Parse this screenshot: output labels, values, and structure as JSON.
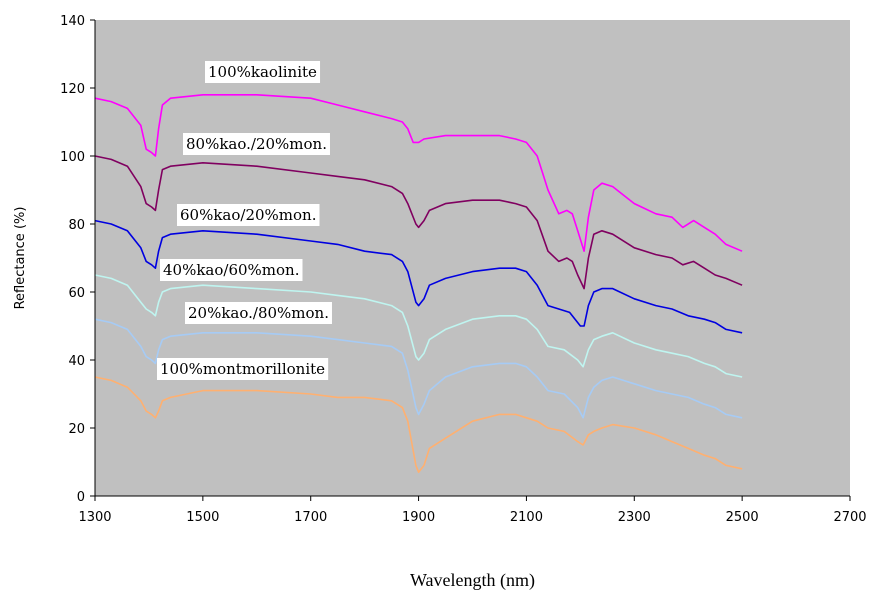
{
  "chart_data": {
    "type": "line",
    "title": "",
    "xlabel": "Wavelength (nm)",
    "ylabel": "Reflectance (%)",
    "xlim": [
      1300,
      2700
    ],
    "ylim": [
      0,
      140
    ],
    "xticks": [
      1300,
      1500,
      1700,
      1900,
      2100,
      2300,
      2500,
      2700
    ],
    "yticks": [
      0,
      20,
      40,
      60,
      80,
      100,
      120,
      140
    ],
    "grid": false,
    "plot_background": "#c0c0c0",
    "series": [
      {
        "name": "100%kaolinite",
        "color": "#ff00ff",
        "points": [
          [
            1300,
            117
          ],
          [
            1330,
            116
          ],
          [
            1360,
            114
          ],
          [
            1385,
            109
          ],
          [
            1395,
            102
          ],
          [
            1405,
            101
          ],
          [
            1412,
            100
          ],
          [
            1418,
            108
          ],
          [
            1425,
            115
          ],
          [
            1440,
            117
          ],
          [
            1500,
            118
          ],
          [
            1600,
            118
          ],
          [
            1700,
            117
          ],
          [
            1750,
            115
          ],
          [
            1800,
            113
          ],
          [
            1850,
            111
          ],
          [
            1870,
            110
          ],
          [
            1880,
            108
          ],
          [
            1890,
            104
          ],
          [
            1900,
            104
          ],
          [
            1910,
            105
          ],
          [
            1950,
            106
          ],
          [
            2000,
            106
          ],
          [
            2050,
            106
          ],
          [
            2080,
            105
          ],
          [
            2100,
            104
          ],
          [
            2120,
            100
          ],
          [
            2140,
            90
          ],
          [
            2160,
            83
          ],
          [
            2175,
            84
          ],
          [
            2185,
            83
          ],
          [
            2195,
            78
          ],
          [
            2207,
            72
          ],
          [
            2215,
            82
          ],
          [
            2225,
            90
          ],
          [
            2240,
            92
          ],
          [
            2260,
            91
          ],
          [
            2300,
            86
          ],
          [
            2340,
            83
          ],
          [
            2370,
            82
          ],
          [
            2390,
            79
          ],
          [
            2410,
            81
          ],
          [
            2430,
            79
          ],
          [
            2450,
            77
          ],
          [
            2470,
            74
          ],
          [
            2500,
            72
          ]
        ],
        "label": "100%kaolinite"
      },
      {
        "name": "80%kao./20%mon.",
        "color": "#800060",
        "points": [
          [
            1300,
            100
          ],
          [
            1330,
            99
          ],
          [
            1360,
            97
          ],
          [
            1385,
            91
          ],
          [
            1395,
            86
          ],
          [
            1405,
            85
          ],
          [
            1412,
            84
          ],
          [
            1418,
            90
          ],
          [
            1425,
            96
          ],
          [
            1440,
            97
          ],
          [
            1500,
            98
          ],
          [
            1600,
            97
          ],
          [
            1700,
            95
          ],
          [
            1750,
            94
          ],
          [
            1800,
            93
          ],
          [
            1850,
            91
          ],
          [
            1870,
            89
          ],
          [
            1880,
            86
          ],
          [
            1895,
            80
          ],
          [
            1900,
            79
          ],
          [
            1910,
            81
          ],
          [
            1920,
            84
          ],
          [
            1950,
            86
          ],
          [
            2000,
            87
          ],
          [
            2050,
            87
          ],
          [
            2080,
            86
          ],
          [
            2100,
            85
          ],
          [
            2120,
            81
          ],
          [
            2140,
            72
          ],
          [
            2160,
            69
          ],
          [
            2175,
            70
          ],
          [
            2185,
            69
          ],
          [
            2195,
            65
          ],
          [
            2207,
            61
          ],
          [
            2215,
            70
          ],
          [
            2225,
            77
          ],
          [
            2240,
            78
          ],
          [
            2260,
            77
          ],
          [
            2300,
            73
          ],
          [
            2340,
            71
          ],
          [
            2370,
            70
          ],
          [
            2390,
            68
          ],
          [
            2410,
            69
          ],
          [
            2430,
            67
          ],
          [
            2450,
            65
          ],
          [
            2470,
            64
          ],
          [
            2500,
            62
          ]
        ],
        "label": "80%kao./20%mon."
      },
      {
        "name": "60%kao/20%mon.",
        "color": "#0000e0",
        "points": [
          [
            1300,
            81
          ],
          [
            1330,
            80
          ],
          [
            1360,
            78
          ],
          [
            1385,
            73
          ],
          [
            1395,
            69
          ],
          [
            1405,
            68
          ],
          [
            1412,
            67
          ],
          [
            1418,
            72
          ],
          [
            1425,
            76
          ],
          [
            1440,
            77
          ],
          [
            1500,
            78
          ],
          [
            1600,
            77
          ],
          [
            1700,
            75
          ],
          [
            1750,
            74
          ],
          [
            1800,
            72
          ],
          [
            1850,
            71
          ],
          [
            1870,
            69
          ],
          [
            1880,
            66
          ],
          [
            1895,
            57
          ],
          [
            1900,
            56
          ],
          [
            1910,
            58
          ],
          [
            1920,
            62
          ],
          [
            1950,
            64
          ],
          [
            2000,
            66
          ],
          [
            2050,
            67
          ],
          [
            2080,
            67
          ],
          [
            2100,
            66
          ],
          [
            2120,
            62
          ],
          [
            2140,
            56
          ],
          [
            2160,
            55
          ],
          [
            2180,
            54
          ],
          [
            2200,
            50
          ],
          [
            2207,
            50
          ],
          [
            2215,
            56
          ],
          [
            2225,
            60
          ],
          [
            2240,
            61
          ],
          [
            2260,
            61
          ],
          [
            2300,
            58
          ],
          [
            2340,
            56
          ],
          [
            2370,
            55
          ],
          [
            2400,
            53
          ],
          [
            2430,
            52
          ],
          [
            2450,
            51
          ],
          [
            2470,
            49
          ],
          [
            2500,
            48
          ]
        ],
        "label": "60%kao/20%mon."
      },
      {
        "name": "40%kao/60%mon.",
        "color": "#bff5f0",
        "points": [
          [
            1300,
            65
          ],
          [
            1330,
            64
          ],
          [
            1360,
            62
          ],
          [
            1385,
            57
          ],
          [
            1395,
            55
          ],
          [
            1405,
            54
          ],
          [
            1412,
            53
          ],
          [
            1418,
            57
          ],
          [
            1425,
            60
          ],
          [
            1440,
            61
          ],
          [
            1500,
            62
          ],
          [
            1600,
            61
          ],
          [
            1700,
            60
          ],
          [
            1750,
            59
          ],
          [
            1800,
            58
          ],
          [
            1850,
            56
          ],
          [
            1870,
            54
          ],
          [
            1880,
            50
          ],
          [
            1895,
            41
          ],
          [
            1900,
            40
          ],
          [
            1910,
            42
          ],
          [
            1920,
            46
          ],
          [
            1950,
            49
          ],
          [
            2000,
            52
          ],
          [
            2050,
            53
          ],
          [
            2080,
            53
          ],
          [
            2100,
            52
          ],
          [
            2120,
            49
          ],
          [
            2140,
            44
          ],
          [
            2170,
            43
          ],
          [
            2195,
            40
          ],
          [
            2205,
            38
          ],
          [
            2215,
            43
          ],
          [
            2225,
            46
          ],
          [
            2240,
            47
          ],
          [
            2260,
            48
          ],
          [
            2300,
            45
          ],
          [
            2340,
            43
          ],
          [
            2370,
            42
          ],
          [
            2400,
            41
          ],
          [
            2430,
            39
          ],
          [
            2450,
            38
          ],
          [
            2470,
            36
          ],
          [
            2500,
            35
          ]
        ],
        "label": "40%kao/60%mon."
      },
      {
        "name": "20%kao./80%mon.",
        "color": "#a6cbf5",
        "points": [
          [
            1300,
            52
          ],
          [
            1330,
            51
          ],
          [
            1360,
            49
          ],
          [
            1385,
            44
          ],
          [
            1395,
            41
          ],
          [
            1405,
            40
          ],
          [
            1412,
            39
          ],
          [
            1418,
            43
          ],
          [
            1425,
            46
          ],
          [
            1440,
            47
          ],
          [
            1500,
            48
          ],
          [
            1600,
            48
          ],
          [
            1700,
            47
          ],
          [
            1750,
            46
          ],
          [
            1800,
            45
          ],
          [
            1850,
            44
          ],
          [
            1870,
            42
          ],
          [
            1880,
            37
          ],
          [
            1895,
            26
          ],
          [
            1900,
            24
          ],
          [
            1910,
            27
          ],
          [
            1920,
            31
          ],
          [
            1950,
            35
          ],
          [
            2000,
            38
          ],
          [
            2050,
            39
          ],
          [
            2080,
            39
          ],
          [
            2100,
            38
          ],
          [
            2120,
            35
          ],
          [
            2140,
            31
          ],
          [
            2170,
            30
          ],
          [
            2195,
            26
          ],
          [
            2205,
            23
          ],
          [
            2215,
            29
          ],
          [
            2225,
            32
          ],
          [
            2240,
            34
          ],
          [
            2260,
            35
          ],
          [
            2300,
            33
          ],
          [
            2340,
            31
          ],
          [
            2370,
            30
          ],
          [
            2400,
            29
          ],
          [
            2430,
            27
          ],
          [
            2450,
            26
          ],
          [
            2470,
            24
          ],
          [
            2500,
            23
          ]
        ],
        "label": "20%kao./80%mon."
      },
      {
        "name": "100%montmorillonite",
        "color": "#ffb070",
        "points": [
          [
            1300,
            35
          ],
          [
            1330,
            34
          ],
          [
            1360,
            32
          ],
          [
            1385,
            28
          ],
          [
            1395,
            25
          ],
          [
            1405,
            24
          ],
          [
            1412,
            23
          ],
          [
            1418,
            25
          ],
          [
            1425,
            28
          ],
          [
            1440,
            29
          ],
          [
            1500,
            31
          ],
          [
            1600,
            31
          ],
          [
            1700,
            30
          ],
          [
            1750,
            29
          ],
          [
            1800,
            29
          ],
          [
            1850,
            28
          ],
          [
            1870,
            26
          ],
          [
            1880,
            22
          ],
          [
            1895,
            9
          ],
          [
            1900,
            7
          ],
          [
            1910,
            9
          ],
          [
            1920,
            14
          ],
          [
            1950,
            17
          ],
          [
            2000,
            22
          ],
          [
            2050,
            24
          ],
          [
            2080,
            24
          ],
          [
            2100,
            23
          ],
          [
            2120,
            22
          ],
          [
            2140,
            20
          ],
          [
            2170,
            19
          ],
          [
            2195,
            16
          ],
          [
            2205,
            15
          ],
          [
            2215,
            18
          ],
          [
            2225,
            19
          ],
          [
            2240,
            20
          ],
          [
            2260,
            21
          ],
          [
            2300,
            20
          ],
          [
            2340,
            18
          ],
          [
            2370,
            16
          ],
          [
            2400,
            14
          ],
          [
            2430,
            12
          ],
          [
            2450,
            11
          ],
          [
            2470,
            9
          ],
          [
            2500,
            8
          ]
        ],
        "label": "100%montmorillonite"
      }
    ]
  }
}
